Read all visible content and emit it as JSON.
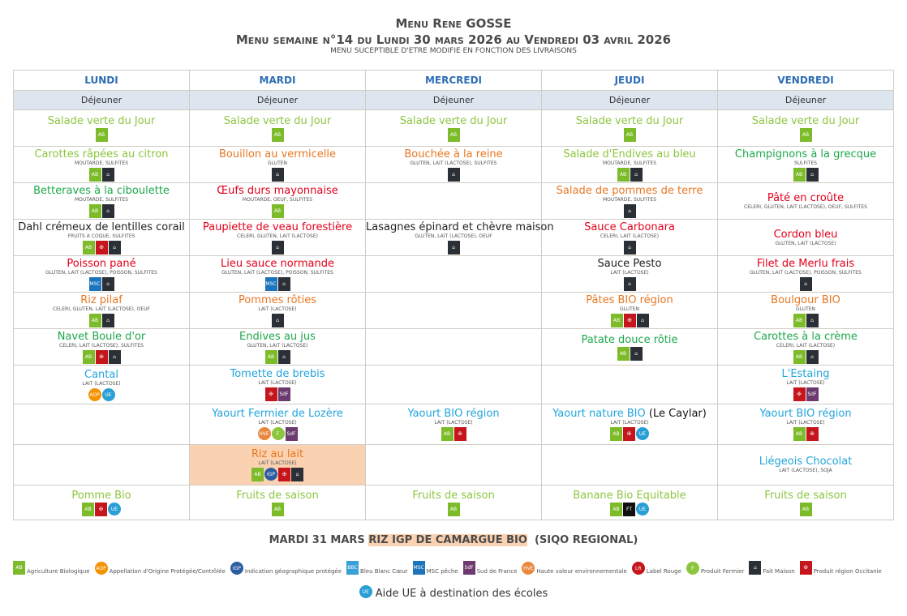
{
  "header": {
    "title": "Menu Rene GOSSE",
    "subtitle": "Menu semaine n°14 du Lundi 30 mars 2026 au Vendredi 03 avril 2026",
    "note": "Menu suceptible d'etre modifie en fonction des livraisons"
  },
  "colors": {
    "lightgreen": "#8cc63f",
    "green": "#1ea84b",
    "orange": "#e87722",
    "red": "#e3001b",
    "blue": "#22a5dc",
    "black": "#222222"
  },
  "icons": {
    "AB": {
      "name": "agriculture-biologique-icon",
      "bg": "#7dbb2a",
      "text": "AB"
    },
    "FM": {
      "name": "fait-maison-icon",
      "bg": "#2b2f36",
      "text": "⌂"
    },
    "OC": {
      "name": "occitanie-icon",
      "bg": "#c4161c",
      "text": "✠"
    },
    "MSC": {
      "name": "msc-peche-icon",
      "bg": "#1c75bc",
      "text": "MSC"
    },
    "SDF": {
      "name": "sud-de-france-icon",
      "bg": "#6b3a6e",
      "text": "SdF"
    },
    "AOP": {
      "name": "aop-icon",
      "bg": "#f39200",
      "text": "AOP"
    },
    "IGP": {
      "name": "igp-icon",
      "bg": "#2d5da1",
      "text": "IGP"
    },
    "UE": {
      "name": "aide-ue-icon",
      "bg": "#2a9fd6",
      "text": "UE"
    },
    "HVE": {
      "name": "hve-icon",
      "bg": "#e9873e",
      "text": "HVE"
    },
    "FERM": {
      "name": "produit-fermier-icon",
      "bg": "#8cc63f",
      "text": "F"
    },
    "FT": {
      "name": "fairtrade-icon",
      "bg": "#111111",
      "text": "FT"
    },
    "LR": {
      "name": "label-rouge-icon",
      "bg": "#c4161c",
      "text": "LR"
    },
    "BBC": {
      "name": "bleu-blanc-coeur-icon",
      "bg": "#3aa0d8",
      "text": "BBC"
    }
  },
  "days": [
    {
      "name": "LUNDI",
      "meal": "Déjeuner",
      "items": [
        {
          "name": "Salade verte du Jour",
          "color": "lightgreen",
          "allergens": "",
          "labels": [
            "AB"
          ]
        },
        {
          "name": "Carottes râpées au citron",
          "color": "lightgreen",
          "allergens": "MOUTARDE, SULFITES",
          "labels": [
            "AB",
            "FM"
          ]
        },
        {
          "name": "Betteraves à la ciboulette",
          "color": "green",
          "allergens": "MOUTARDE, SULFITES",
          "labels": [
            "AB",
            "FM"
          ]
        },
        {
          "name": "Dahl crémeux de lentilles corail",
          "color": "black",
          "allergens": "FRUITS A COQUE, SULFITES",
          "labels": [
            "AB",
            "OC",
            "FM"
          ]
        },
        {
          "name": "Poisson pané",
          "color": "red",
          "allergens": "GLUTEN, LAIT (LACTOSE), POISSON, SULFITES",
          "labels": [
            "MSC",
            "FM"
          ]
        },
        {
          "name": "Riz pilaf",
          "color": "orange",
          "allergens": "CELERI, GLUTEN, LAIT (LACTOSE), OEUF",
          "labels": [
            "AB",
            "FM"
          ]
        },
        {
          "name": "Navet Boule d'or",
          "color": "green",
          "allergens": "CELERI, LAIT (LACTOSE), SULFITES",
          "labels": [
            "AB",
            "OC",
            "FM"
          ]
        },
        {
          "name": "Cantal",
          "color": "blue",
          "allergens": "LAIT (LACTOSE)",
          "labels": [
            "AOP",
            "UE"
          ]
        },
        null,
        null,
        {
          "name": "Pomme Bio",
          "color": "lightgreen",
          "allergens": "",
          "labels": [
            "AB",
            "OC",
            "UE"
          ]
        }
      ]
    },
    {
      "name": "MARDI",
      "meal": "Déjeuner",
      "items": [
        {
          "name": "Salade verte du Jour",
          "color": "lightgreen",
          "allergens": "",
          "labels": [
            "AB"
          ]
        },
        {
          "name": "Bouillon au vermicelle",
          "color": "orange",
          "allergens": "GLUTEN",
          "labels": [
            "FM"
          ]
        },
        {
          "name": "Œufs durs mayonnaise",
          "color": "red",
          "allergens": "MOUTARDE, OEUF, SULFITES",
          "labels": [
            "AB"
          ]
        },
        {
          "name": "Paupiette de veau forestière",
          "color": "red",
          "allergens": "CELERI, GLUTEN, LAIT (LACTOSE)",
          "labels": [
            "FM"
          ]
        },
        {
          "name": "Lieu sauce normande",
          "color": "red",
          "allergens": "GLUTEN, LAIT (LACTOSE), POISSON, SULFITES",
          "labels": [
            "MSC",
            "FM"
          ]
        },
        {
          "name": "Pommes rôties",
          "color": "orange",
          "allergens": "LAIT (LACTOSE)",
          "labels": [
            "FM"
          ]
        },
        {
          "name": "Endives au jus",
          "color": "green",
          "allergens": "GLUTEN, LAIT (LACTOSE)",
          "labels": [
            "AB",
            "FM"
          ]
        },
        {
          "name": "Tomette de brebis",
          "color": "blue",
          "allergens": "LAIT (LACTOSE)",
          "labels": [
            "OC",
            "SDF"
          ]
        },
        {
          "name": "Yaourt Fermier de Lozère",
          "color": "blue",
          "allergens": "LAIT (LACTOSE)",
          "labels": [
            "HVE",
            "FERM",
            "SDF"
          ]
        },
        {
          "name": "Riz au lait",
          "color": "orange",
          "allergens": "LAIT (LACTOSE)",
          "labels": [
            "AB",
            "IGP",
            "OC",
            "FM"
          ],
          "highlight": true
        },
        {
          "name": "Fruits de saison",
          "color": "lightgreen",
          "allergens": "",
          "labels": [
            "AB"
          ]
        }
      ]
    },
    {
      "name": "MERCREDI",
      "meal": "Déjeuner",
      "items": [
        {
          "name": "Salade verte du Jour",
          "color": "lightgreen",
          "allergens": "",
          "labels": [
            "AB"
          ]
        },
        {
          "name": "Bouchée à la reine",
          "color": "orange",
          "allergens": "GLUTEN, LAIT (LACTOSE), SULFITES",
          "labels": [
            "FM"
          ]
        },
        null,
        {
          "name": "Lasagnes épinard et chèvre maison",
          "color": "black",
          "allergens": "GLUTEN, LAIT (LACTOSE), OEUF",
          "labels": [
            "FM"
          ]
        },
        null,
        null,
        null,
        null,
        {
          "name": "Yaourt BIO région",
          "color": "blue",
          "allergens": "LAIT (LACTOSE)",
          "labels": [
            "AB",
            "OC"
          ]
        },
        null,
        {
          "name": "Fruits de saison",
          "color": "lightgreen",
          "allergens": "",
          "labels": [
            "AB"
          ]
        }
      ]
    },
    {
      "name": "JEUDI",
      "meal": "Déjeuner",
      "items": [
        {
          "name": "Salade verte du Jour",
          "color": "lightgreen",
          "allergens": "",
          "labels": [
            "AB"
          ]
        },
        {
          "name": "Salade d'Endives au bleu",
          "color": "lightgreen",
          "allergens": "MOUTARDE, SULFITES",
          "labels": [
            "AB",
            "FM"
          ]
        },
        {
          "name": "Salade de pommes de terre",
          "color": "orange",
          "allergens": "MOUTARDE, SULFITES",
          "labels": [
            "FM"
          ]
        },
        {
          "name": "Sauce Carbonara",
          "color": "red",
          "allergens": "CELERI, LAIT (LACTOSE)",
          "labels": [
            "FM"
          ]
        },
        {
          "name": "Sauce Pesto",
          "color": "black",
          "allergens": "LAIT (LACTOSE)",
          "labels": [
            "FM"
          ]
        },
        {
          "name": "Pâtes BIO région",
          "color": "orange",
          "allergens": "GLUTEN",
          "labels": [
            "AB",
            "OC",
            "FM"
          ]
        },
        {
          "name": "Patate douce rôtie",
          "color": "green",
          "allergens": "",
          "labels": [
            "AB",
            "FM"
          ]
        },
        null,
        {
          "name": "Yaourt nature BIO",
          "suffix": " (Le Caylar)",
          "color": "blue",
          "allergens": "LAIT (LACTOSE)",
          "labels": [
            "AB",
            "OC",
            "UE"
          ]
        },
        null,
        {
          "name": "Banane Bio Equitable",
          "color": "lightgreen",
          "allergens": "",
          "labels": [
            "AB",
            "FT",
            "UE"
          ]
        }
      ]
    },
    {
      "name": "VENDREDI",
      "meal": "Déjeuner",
      "items": [
        {
          "name": "Salade verte du Jour",
          "color": "lightgreen",
          "allergens": "",
          "labels": [
            "AB"
          ]
        },
        {
          "name": "Champignons à la grecque",
          "color": "green",
          "allergens": "SULFITES",
          "labels": [
            "AB",
            "FM"
          ]
        },
        {
          "name": "Pâté en croûte",
          "color": "red",
          "allergens": "CELERI, GLUTEN, LAIT (LACTOSE), OEUF, SULFITES",
          "labels": []
        },
        {
          "name": "Cordon bleu",
          "color": "red",
          "allergens": "GLUTEN, LAIT (LACTOSE)",
          "labels": []
        },
        {
          "name": "Filet de Merlu frais",
          "color": "red",
          "allergens": "GLUTEN, LAIT (LACTOSE), POISSON, SULFITES",
          "labels": [
            "FM"
          ]
        },
        {
          "name": "Boulgour BIO",
          "color": "orange",
          "allergens": "GLUTEN",
          "labels": [
            "AB",
            "FM"
          ]
        },
        {
          "name": "Carottes à la crème",
          "color": "green",
          "allergens": "CELERI, LAIT (LACTOSE)",
          "labels": [
            "AB",
            "FM"
          ]
        },
        {
          "name": "L'Estaing",
          "color": "blue",
          "allergens": "LAIT (LACTOSE)",
          "labels": [
            "OC",
            "SDF"
          ]
        },
        {
          "name": "Yaourt BIO région",
          "color": "blue",
          "allergens": "LAIT (LACTOSE)",
          "labels": [
            "AB",
            "OC"
          ]
        },
        {
          "name": "Liégeois Chocolat",
          "color": "blue",
          "allergens": "LAIT (LACTOSE), SOJA",
          "labels": []
        },
        {
          "name": "Fruits de saison",
          "color": "lightgreen",
          "allergens": "",
          "labels": [
            "AB"
          ]
        }
      ]
    }
  ],
  "footer": {
    "prefix": "MARDI 31 MARS ",
    "highlight": "RIZ IGP DE CAMARGUE BIO",
    "suffix": "  (SIQO REGIONAL)"
  },
  "legend": [
    {
      "icon": "AB",
      "label": "Agriculture Biologique"
    },
    {
      "icon": "AOP",
      "label": "Appellation d'Origine Protégée/Contrôlée"
    },
    {
      "icon": "IGP",
      "label": "Indication géographique protégée"
    },
    {
      "icon": "BBC",
      "label": "Bleu Blanc Cœur"
    },
    {
      "icon": "MSC",
      "label": "MSC pêche"
    },
    {
      "icon": "SDF",
      "label": "Sud de France"
    },
    {
      "icon": "HVE",
      "label": "Haute valeur environnementale"
    },
    {
      "icon": "LR",
      "label": "Label Rouge"
    },
    {
      "icon": "FERM",
      "label": "Produit Fermier"
    },
    {
      "icon": "FM",
      "label": "Fait Maison"
    },
    {
      "icon": "OC",
      "label": "Produit région Occitanie"
    }
  ],
  "aide": {
    "icon": "UE",
    "label": "Aide UE à destination des écoles"
  }
}
